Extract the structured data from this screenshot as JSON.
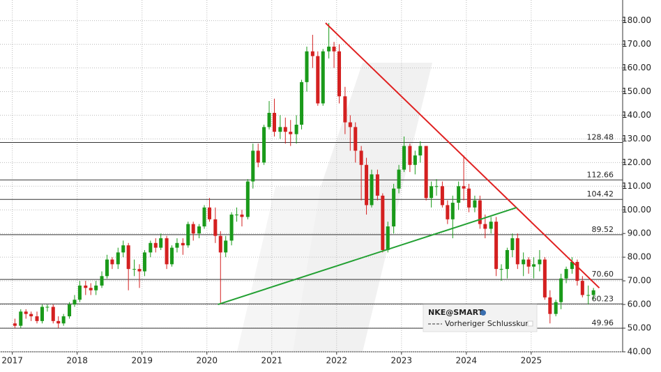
{
  "chart_data": {
    "type": "candlestick",
    "x": [
      2017.04,
      2017.13,
      2017.21,
      2017.29,
      2017.38,
      2017.46,
      2017.54,
      2017.63,
      2017.71,
      2017.79,
      2017.88,
      2017.96,
      2018.04,
      2018.13,
      2018.21,
      2018.29,
      2018.38,
      2018.46,
      2018.54,
      2018.63,
      2018.71,
      2018.79,
      2018.88,
      2018.96,
      2019.04,
      2019.13,
      2019.21,
      2019.29,
      2019.38,
      2019.46,
      2019.54,
      2019.63,
      2019.71,
      2019.79,
      2019.88,
      2019.96,
      2020.04,
      2020.13,
      2020.21,
      2020.29,
      2020.38,
      2020.46,
      2020.54,
      2020.63,
      2020.71,
      2020.79,
      2020.88,
      2020.96,
      2021.04,
      2021.13,
      2021.21,
      2021.29,
      2021.38,
      2021.46,
      2021.54,
      2021.63,
      2021.71,
      2021.79,
      2021.88,
      2021.96,
      2022.04,
      2022.13,
      2022.21,
      2022.29,
      2022.38,
      2022.46,
      2022.54,
      2022.63,
      2022.71,
      2022.79,
      2022.88,
      2022.96,
      2023.04,
      2023.13,
      2023.21,
      2023.29,
      2023.38,
      2023.46,
      2023.54,
      2023.63,
      2023.71,
      2023.79,
      2023.88,
      2023.96,
      2024.04,
      2024.13,
      2024.21,
      2024.29,
      2024.38,
      2024.46,
      2024.54,
      2024.63,
      2024.71,
      2024.79,
      2024.88,
      2024.96,
      2025.04,
      2025.13,
      2025.21,
      2025.29,
      2025.38,
      2025.46,
      2025.54,
      2025.63,
      2025.71,
      2025.79,
      2025.88,
      2025.96
    ],
    "open": [
      52,
      51,
      57,
      56,
      55,
      53,
      59,
      59,
      53,
      52,
      55,
      60,
      62,
      68,
      67,
      66,
      68,
      72,
      79,
      77,
      82,
      85,
      75,
      75,
      74,
      82,
      86,
      84,
      88,
      77,
      84,
      86,
      85,
      94,
      90,
      93,
      101,
      96,
      89,
      82,
      87,
      98,
      98,
      97,
      112,
      125,
      120,
      135,
      141,
      133,
      135,
      133,
      132,
      136,
      154,
      167,
      165,
      145,
      167,
      169,
      167,
      148,
      137,
      135,
      125,
      119,
      102,
      115,
      106,
      83,
      93,
      109,
      117,
      127,
      119,
      123,
      127,
      105,
      110,
      110,
      102,
      96,
      103,
      110,
      109,
      101,
      104,
      94,
      92,
      95,
      75,
      75,
      83,
      88,
      77,
      79,
      76,
      77,
      79,
      63,
      56,
      61,
      71,
      75,
      78,
      70,
      64,
      64
    ],
    "high": [
      54,
      58,
      58,
      57,
      57,
      60,
      60,
      60,
      55,
      56,
      61,
      64,
      70,
      70,
      69,
      70,
      74,
      81,
      80,
      84,
      87,
      86,
      79,
      77,
      83,
      87,
      88,
      90,
      89,
      85,
      88,
      88,
      95,
      95,
      94,
      102,
      105,
      101,
      91,
      89,
      99,
      101,
      100,
      113,
      128,
      128,
      136,
      146,
      147,
      140,
      139,
      138,
      140,
      155,
      169,
      174,
      167,
      168,
      179,
      171,
      170,
      152,
      140,
      137,
      127,
      122,
      117,
      117,
      107,
      95,
      111,
      119,
      131,
      128,
      125,
      129,
      127,
      112,
      113,
      112,
      104,
      106,
      112,
      123,
      111,
      106,
      106,
      98,
      97,
      97,
      77,
      84,
      90,
      90,
      82,
      80,
      80,
      83,
      80,
      66,
      62,
      73,
      76,
      80,
      79,
      72,
      68,
      67
    ],
    "low": [
      50,
      50,
      54,
      53,
      52,
      52,
      57,
      52,
      50,
      51,
      54,
      59,
      61,
      64,
      64,
      64,
      67,
      71,
      75,
      75,
      80,
      66,
      72,
      67,
      72,
      80,
      82,
      83,
      75,
      76,
      82,
      81,
      84,
      87,
      88,
      92,
      95,
      86,
      60,
      80,
      85,
      95,
      93,
      96,
      109,
      118,
      119,
      134,
      131,
      130,
      128,
      127,
      128,
      134,
      150,
      160,
      144,
      144,
      164,
      160,
      145,
      132,
      125,
      120,
      104,
      98,
      101,
      104,
      82,
      82,
      90,
      107,
      116,
      116,
      115,
      120,
      104,
      101,
      106,
      101,
      94,
      88,
      100,
      104,
      99,
      99,
      92,
      88,
      90,
      72,
      70,
      71,
      80,
      75,
      72,
      73,
      71,
      74,
      62,
      52,
      55,
      58,
      69,
      73,
      68,
      63,
      60,
      62
    ],
    "close": [
      51,
      57,
      56,
      55,
      53,
      59,
      59,
      53,
      52,
      55,
      60,
      62,
      68,
      67,
      66,
      68,
      72,
      79,
      77,
      82,
      85,
      75,
      75,
      74,
      82,
      86,
      84,
      88,
      77,
      84,
      86,
      85,
      94,
      90,
      93,
      101,
      96,
      89,
      82,
      87,
      98,
      98,
      97,
      112,
      125,
      120,
      135,
      141,
      133,
      135,
      133,
      132,
      136,
      154,
      167,
      165,
      145,
      167,
      169,
      167,
      148,
      137,
      135,
      125,
      119,
      102,
      115,
      106,
      83,
      93,
      109,
      117,
      127,
      119,
      123,
      127,
      105,
      110,
      110,
      102,
      96,
      103,
      110,
      109,
      101,
      104,
      94,
      92,
      95,
      75,
      75,
      83,
      88,
      77,
      79,
      76,
      77,
      79,
      63,
      56,
      61,
      71,
      75,
      78,
      70,
      64,
      64,
      66
    ],
    "up_color": "#1a9a1a",
    "down_color": "#d42020",
    "xlim": [
      2016.81,
      2026.41
    ],
    "xticks": [
      2017,
      2018,
      2019,
      2020,
      2021,
      2022,
      2023,
      2024,
      2025
    ],
    "ylim": [
      40,
      184
    ],
    "yticks": [
      {
        "value": 40,
        "label": "40.00"
      },
      {
        "value": 50,
        "label": "50.00"
      },
      {
        "value": 60,
        "label": "60.00"
      },
      {
        "value": 70,
        "label": "70.00"
      },
      {
        "value": 80,
        "label": "80.00"
      },
      {
        "value": 90,
        "label": "90.00"
      },
      {
        "value": 100,
        "label": "100.00"
      },
      {
        "value": 110,
        "label": "110.00"
      },
      {
        "value": 120,
        "label": "120.00"
      },
      {
        "value": 130,
        "label": "130.00"
      },
      {
        "value": 140,
        "label": "140.00"
      },
      {
        "value": 150,
        "label": "150.00"
      },
      {
        "value": 160,
        "label": "160.00"
      },
      {
        "value": 170,
        "label": "170.00"
      },
      {
        "value": 180,
        "label": "180.00"
      }
    ],
    "levels": [
      {
        "value": 128.48,
        "label": "128.48"
      },
      {
        "value": 112.66,
        "label": "112.66"
      },
      {
        "value": 104.42,
        "label": "104.42"
      },
      {
        "value": 89.52,
        "label": "89.52"
      },
      {
        "value": 70.6,
        "label": "70.60"
      },
      {
        "value": 60.23,
        "label": "60.23"
      },
      {
        "value": 49.96,
        "label": "49.96"
      }
    ],
    "trendlines": [
      {
        "color": "#e02020",
        "x": [
          2021.83,
          2026.05
        ],
        "y": [
          179,
          67
        ]
      },
      {
        "color": "#22a032",
        "x": [
          2020.17,
          2024.78
        ],
        "y": [
          60,
          101
        ]
      }
    ],
    "legend_title": "NKE@SMART",
    "legend_label": "Vorheriger Schlusskurs",
    "grid": true
  }
}
